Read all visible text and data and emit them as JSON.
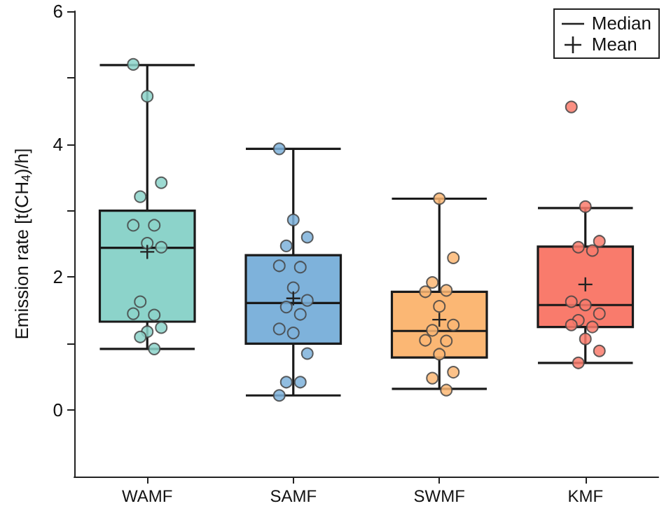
{
  "chart_data": {
    "type": "box",
    "ylabel": "Emission rate [t(CH$_{4}$)/h]",
    "categories": [
      "WAMF",
      "SAMF",
      "SWMF",
      "KMF"
    ],
    "ylim": [
      -1,
      6
    ],
    "yticks": [
      0,
      {
        "value": 1,
        "label": null
      },
      2,
      {
        "value": 3,
        "label": null
      },
      4,
      {
        "value": 5,
        "label": null
      },
      6
    ],
    "grid": false,
    "annotations": [
      "Median",
      "Mean"
    ],
    "series": [
      {
        "type": "box",
        "colors": [
          "#8cd3ca",
          "#7eb2db",
          "#fbb774",
          "#f97b6c"
        ],
        "boxes": [
          {
            "low": 0.92,
            "q1": 1.33,
            "median": 2.44,
            "q3": 3.0,
            "high": 5.19,
            "mean": 2.38
          },
          {
            "low": 0.22,
            "q1": 1.0,
            "median": 1.61,
            "q3": 2.33,
            "high": 3.93,
            "mean": 1.68
          },
          {
            "low": 0.32,
            "q1": 0.79,
            "median": 1.19,
            "q3": 1.78,
            "high": 3.18,
            "mean": 1.36
          },
          {
            "low": 0.71,
            "q1": 1.25,
            "median": 1.58,
            "q3": 2.46,
            "high": 3.04,
            "mean": 1.89
          }
        ]
      },
      {
        "type": "scatter",
        "x": [
          "WAMF",
          "WAMF",
          "WAMF",
          "WAMF",
          "WAMF",
          "WAMF",
          "WAMF",
          "WAMF",
          "WAMF",
          "WAMF",
          "WAMF",
          "WAMF",
          "WAMF",
          "WAMF",
          "WAMF",
          "SAMF",
          "SAMF",
          "SAMF",
          "SAMF",
          "SAMF",
          "SAMF",
          "SAMF",
          "SAMF",
          "SAMF",
          "SAMF",
          "SAMF",
          "SAMF",
          "SAMF",
          "SAMF",
          "SAMF",
          "SAMF",
          "SWMF",
          "SWMF",
          "SWMF",
          "SWMF",
          "SWMF",
          "SWMF",
          "SWMF",
          "SWMF",
          "SWMF",
          "SWMF",
          "SWMF",
          "SWMF",
          "SWMF",
          "SWMF",
          "KMF",
          "KMF",
          "KMF",
          "KMF",
          "KMF",
          "KMF",
          "KMF",
          "KMF",
          "KMF",
          "KMF",
          "KMF",
          "KMF",
          "KMF",
          "KMF"
        ],
        "values": [
          5.2,
          4.72,
          3.42,
          3.21,
          2.78,
          2.78,
          2.51,
          2.45,
          1.63,
          1.43,
          1.45,
          1.18,
          1.24,
          1.1,
          0.92,
          3.93,
          2.86,
          2.6,
          2.47,
          2.15,
          2.17,
          1.84,
          1.65,
          1.55,
          1.44,
          1.22,
          1.16,
          0.85,
          0.42,
          0.42,
          0.22,
          3.18,
          2.29,
          1.92,
          1.8,
          1.78,
          1.56,
          1.28,
          1.2,
          1.04,
          1.05,
          0.84,
          0.57,
          0.48,
          0.3,
          4.56,
          3.06,
          2.54,
          2.45,
          2.4,
          1.63,
          1.58,
          1.45,
          1.35,
          1.25,
          1.28,
          1.07,
          0.89,
          0.71
        ],
        "colors": [
          "#8cd3ca",
          "#8cd3ca",
          "#8cd3ca",
          "#8cd3ca",
          "#8cd3ca",
          "#8cd3ca",
          "#8cd3ca",
          "#8cd3ca",
          "#8cd3ca",
          "#8cd3ca",
          "#8cd3ca",
          "#8cd3ca",
          "#8cd3ca",
          "#8cd3ca",
          "#8cd3ca",
          "#7eb2db",
          "#7eb2db",
          "#7eb2db",
          "#7eb2db",
          "#7eb2db",
          "#7eb2db",
          "#7eb2db",
          "#7eb2db",
          "#7eb2db",
          "#7eb2db",
          "#7eb2db",
          "#7eb2db",
          "#7eb2db",
          "#7eb2db",
          "#7eb2db",
          "#7eb2db",
          "#fbb774",
          "#fbb774",
          "#fbb774",
          "#fbb774",
          "#fbb774",
          "#fbb774",
          "#fbb774",
          "#fbb774",
          "#fbb774",
          "#fbb774",
          "#fbb774",
          "#fbb774",
          "#fbb774",
          "#fbb774",
          "#f97b6c",
          "#f97b6c",
          "#f97b6c",
          "#f97b6c",
          "#f97b6c",
          "#f97b6c",
          "#f97b6c",
          "#f97b6c",
          "#f97b6c",
          "#f97b6c",
          "#f97b6c",
          "#f97b6c",
          "#f97b6c",
          "#f97b6c"
        ]
      }
    ]
  }
}
